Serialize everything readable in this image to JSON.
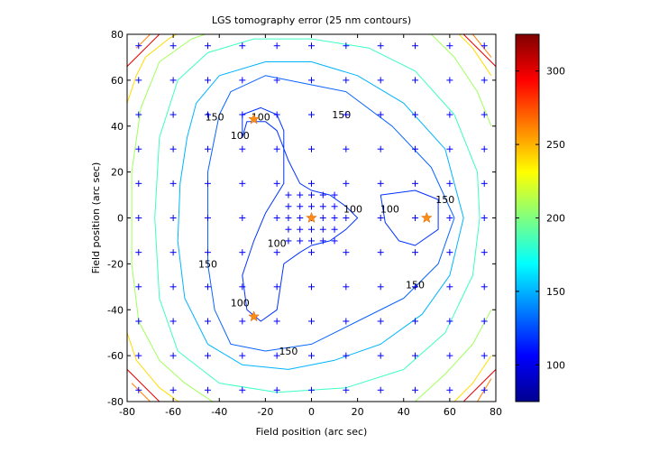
{
  "chart_data": {
    "type": "contour",
    "title": "LGS tomography error (25 nm contours)",
    "xlabel": "Field position (arc sec)",
    "ylabel": "Field position (arc sec)",
    "xlim": [
      -80,
      80
    ],
    "ylim": [
      -80,
      80
    ],
    "xticks": [
      -80,
      -60,
      -40,
      -20,
      0,
      20,
      40,
      60,
      80
    ],
    "yticks": [
      -80,
      -60,
      -40,
      -20,
      0,
      20,
      40,
      60,
      80
    ],
    "grid": false,
    "colorbar": {
      "colormap": "jet",
      "range": [
        75,
        325
      ],
      "ticks": [
        100,
        150,
        200,
        250,
        300
      ]
    },
    "contour_interval_nm": 25,
    "evaluation_grid": {
      "x": [
        -75,
        -60,
        -45,
        -30,
        -15,
        0,
        15,
        30,
        45,
        60,
        75
      ],
      "y": [
        -75,
        -60,
        -45,
        -30,
        -15,
        0,
        15,
        30,
        45,
        60,
        75
      ],
      "marker": "+",
      "color": "#0000ff"
    },
    "fine_grid": {
      "x": [
        -10,
        -5,
        0,
        5,
        10
      ],
      "y": [
        -10,
        -5,
        0,
        5,
        10
      ],
      "marker": "+",
      "color": "#0000ff"
    },
    "lgs_stars": {
      "marker": "star",
      "color": "#ff8c1a",
      "points": [
        [
          -25,
          43
        ],
        [
          -25,
          -43
        ],
        [
          50,
          0
        ],
        [
          0,
          0
        ]
      ]
    },
    "contours": [
      {
        "level": 100,
        "color": "#0032ff",
        "paths": [
          [
            [
              -30,
              45
            ],
            [
              -22,
              48
            ],
            [
              -15,
              45
            ],
            [
              -12,
              38
            ],
            [
              -12,
              15
            ],
            [
              -20,
              2
            ],
            [
              -25,
              -10
            ],
            [
              -30,
              -25
            ],
            [
              -28,
              -40
            ],
            [
              -22,
              -45
            ],
            [
              -15,
              -40
            ],
            [
              -12,
              -20
            ],
            [
              -5,
              -15
            ],
            [
              0,
              -12
            ],
            [
              8,
              -10
            ],
            [
              15,
              -5
            ],
            [
              20,
              0
            ],
            [
              15,
              5
            ],
            [
              8,
              10
            ],
            [
              0,
              12
            ],
            [
              -5,
              15
            ],
            [
              -10,
              25
            ],
            [
              -15,
              38
            ],
            [
              -20,
              42
            ],
            [
              -28,
              42
            ],
            [
              -30,
              35
            ],
            [
              -30,
              45
            ]
          ],
          [
            [
              30,
              10
            ],
            [
              45,
              12
            ],
            [
              55,
              8
            ],
            [
              55,
              -5
            ],
            [
              45,
              -12
            ],
            [
              38,
              -10
            ],
            [
              32,
              -2
            ],
            [
              30,
              10
            ]
          ]
        ],
        "labels": [
          {
            "text": "100",
            "x": -22,
            "y": 44
          },
          {
            "text": "100",
            "x": -31,
            "y": 36
          },
          {
            "text": "100",
            "x": 18,
            "y": 4
          },
          {
            "text": "100",
            "x": 34,
            "y": 4
          },
          {
            "text": "100",
            "x": -15,
            "y": -11
          },
          {
            "text": "100",
            "x": -31,
            "y": -37
          }
        ]
      },
      {
        "level": 125,
        "color": "#0a64ff",
        "paths": [
          [
            [
              -40,
              45
            ],
            [
              -35,
              55
            ],
            [
              -20,
              62
            ],
            [
              0,
              58
            ],
            [
              15,
              55
            ],
            [
              35,
              40
            ],
            [
              52,
              22
            ],
            [
              62,
              0
            ],
            [
              55,
              -20
            ],
            [
              40,
              -35
            ],
            [
              20,
              -45
            ],
            [
              0,
              -55
            ],
            [
              -20,
              -58
            ],
            [
              -35,
              -55
            ],
            [
              -42,
              -40
            ],
            [
              -45,
              -20
            ],
            [
              -45,
              0
            ],
            [
              -45,
              20
            ],
            [
              -42,
              35
            ],
            [
              -40,
              45
            ]
          ]
        ],
        "labels": []
      },
      {
        "level": 150,
        "color": "#00b4ff",
        "paths": [
          [
            [
              -50,
              50
            ],
            [
              -40,
              62
            ],
            [
              -20,
              68
            ],
            [
              0,
              68
            ],
            [
              20,
              62
            ],
            [
              40,
              50
            ],
            [
              58,
              30
            ],
            [
              66,
              0
            ],
            [
              60,
              -25
            ],
            [
              48,
              -42
            ],
            [
              30,
              -55
            ],
            [
              10,
              -62
            ],
            [
              -10,
              -66
            ],
            [
              -30,
              -64
            ],
            [
              -45,
              -55
            ],
            [
              -55,
              -35
            ],
            [
              -58,
              -10
            ],
            [
              -57,
              15
            ],
            [
              -54,
              35
            ],
            [
              -50,
              50
            ]
          ]
        ],
        "labels": [
          {
            "text": "150",
            "x": -42,
            "y": 44
          },
          {
            "text": "150",
            "x": 13,
            "y": 45
          },
          {
            "text": "150",
            "x": 58,
            "y": 8
          },
          {
            "text": "150",
            "x": -45,
            "y": -20
          },
          {
            "text": "150",
            "x": 45,
            "y": -29
          },
          {
            "text": "150",
            "x": -10,
            "y": -58
          }
        ]
      },
      {
        "level": 175,
        "color": "#3cffc3",
        "paths": [
          [
            [
              -58,
              60
            ],
            [
              -45,
              72
            ],
            [
              -25,
              78
            ],
            [
              0,
              78
            ],
            [
              25,
              74
            ],
            [
              45,
              64
            ],
            [
              62,
              45
            ],
            [
              72,
              20
            ],
            [
              73,
              0
            ],
            [
              70,
              -25
            ],
            [
              58,
              -50
            ],
            [
              40,
              -66
            ],
            [
              15,
              -74
            ],
            [
              -15,
              -76
            ],
            [
              -40,
              -72
            ],
            [
              -58,
              -58
            ],
            [
              -66,
              -35
            ],
            [
              -68,
              0
            ],
            [
              -66,
              35
            ],
            [
              -58,
              60
            ]
          ]
        ],
        "labels": []
      },
      {
        "level": 200,
        "color": "#a0ff5a",
        "paths": [
          [
            [
              -66,
              68
            ],
            [
              -52,
              78
            ],
            [
              -40,
              82
            ]
          ],
          [
            [
              50,
              82
            ],
            [
              62,
              70
            ],
            [
              72,
              55
            ],
            [
              78,
              40
            ]
          ],
          [
            [
              78,
              -40
            ],
            [
              70,
              -55
            ],
            [
              58,
              -68
            ],
            [
              45,
              -80
            ]
          ],
          [
            [
              -40,
              -82
            ],
            [
              -55,
              -72
            ],
            [
              -66,
              -62
            ],
            [
              -75,
              -45
            ],
            [
              -78,
              -20
            ],
            [
              -78,
              20
            ],
            [
              -74,
              48
            ],
            [
              -66,
              68
            ]
          ]
        ],
        "labels": []
      },
      {
        "level": 225,
        "color": "#ffdc00",
        "paths": [
          [
            [
              -72,
              70
            ],
            [
              -62,
              78
            ],
            [
              -55,
              82
            ]
          ],
          [
            [
              62,
              82
            ],
            [
              70,
              74
            ],
            [
              78,
              62
            ]
          ],
          [
            [
              78,
              -60
            ],
            [
              70,
              -72
            ],
            [
              60,
              -82
            ]
          ],
          [
            [
              -55,
              -82
            ],
            [
              -66,
              -74
            ],
            [
              -76,
              -62
            ],
            [
              -80,
              -50
            ]
          ],
          [
            [
              -80,
              50
            ],
            [
              -76,
              62
            ],
            [
              -72,
              70
            ]
          ]
        ],
        "labels": []
      },
      {
        "level": 250,
        "color": "#ff8200",
        "paths": [
          [
            [
              -76,
              74
            ],
            [
              -70,
              80
            ]
          ],
          [
            [
              70,
              80
            ],
            [
              78,
              70
            ]
          ],
          [
            [
              78,
              -70
            ],
            [
              72,
              -80
            ]
          ],
          [
            [
              -70,
              -80
            ],
            [
              -78,
              -72
            ]
          ]
        ],
        "labels": []
      },
      {
        "level": 275,
        "color": "#e60000",
        "paths": [
          [
            [
              -80,
              66
            ],
            [
              -66,
              80
            ]
          ],
          [
            [
              66,
              80
            ],
            [
              80,
              66
            ]
          ],
          [
            [
              80,
              -66
            ],
            [
              66,
              -80
            ]
          ],
          [
            [
              -66,
              -80
            ],
            [
              -80,
              -66
            ]
          ]
        ],
        "labels": []
      }
    ]
  }
}
